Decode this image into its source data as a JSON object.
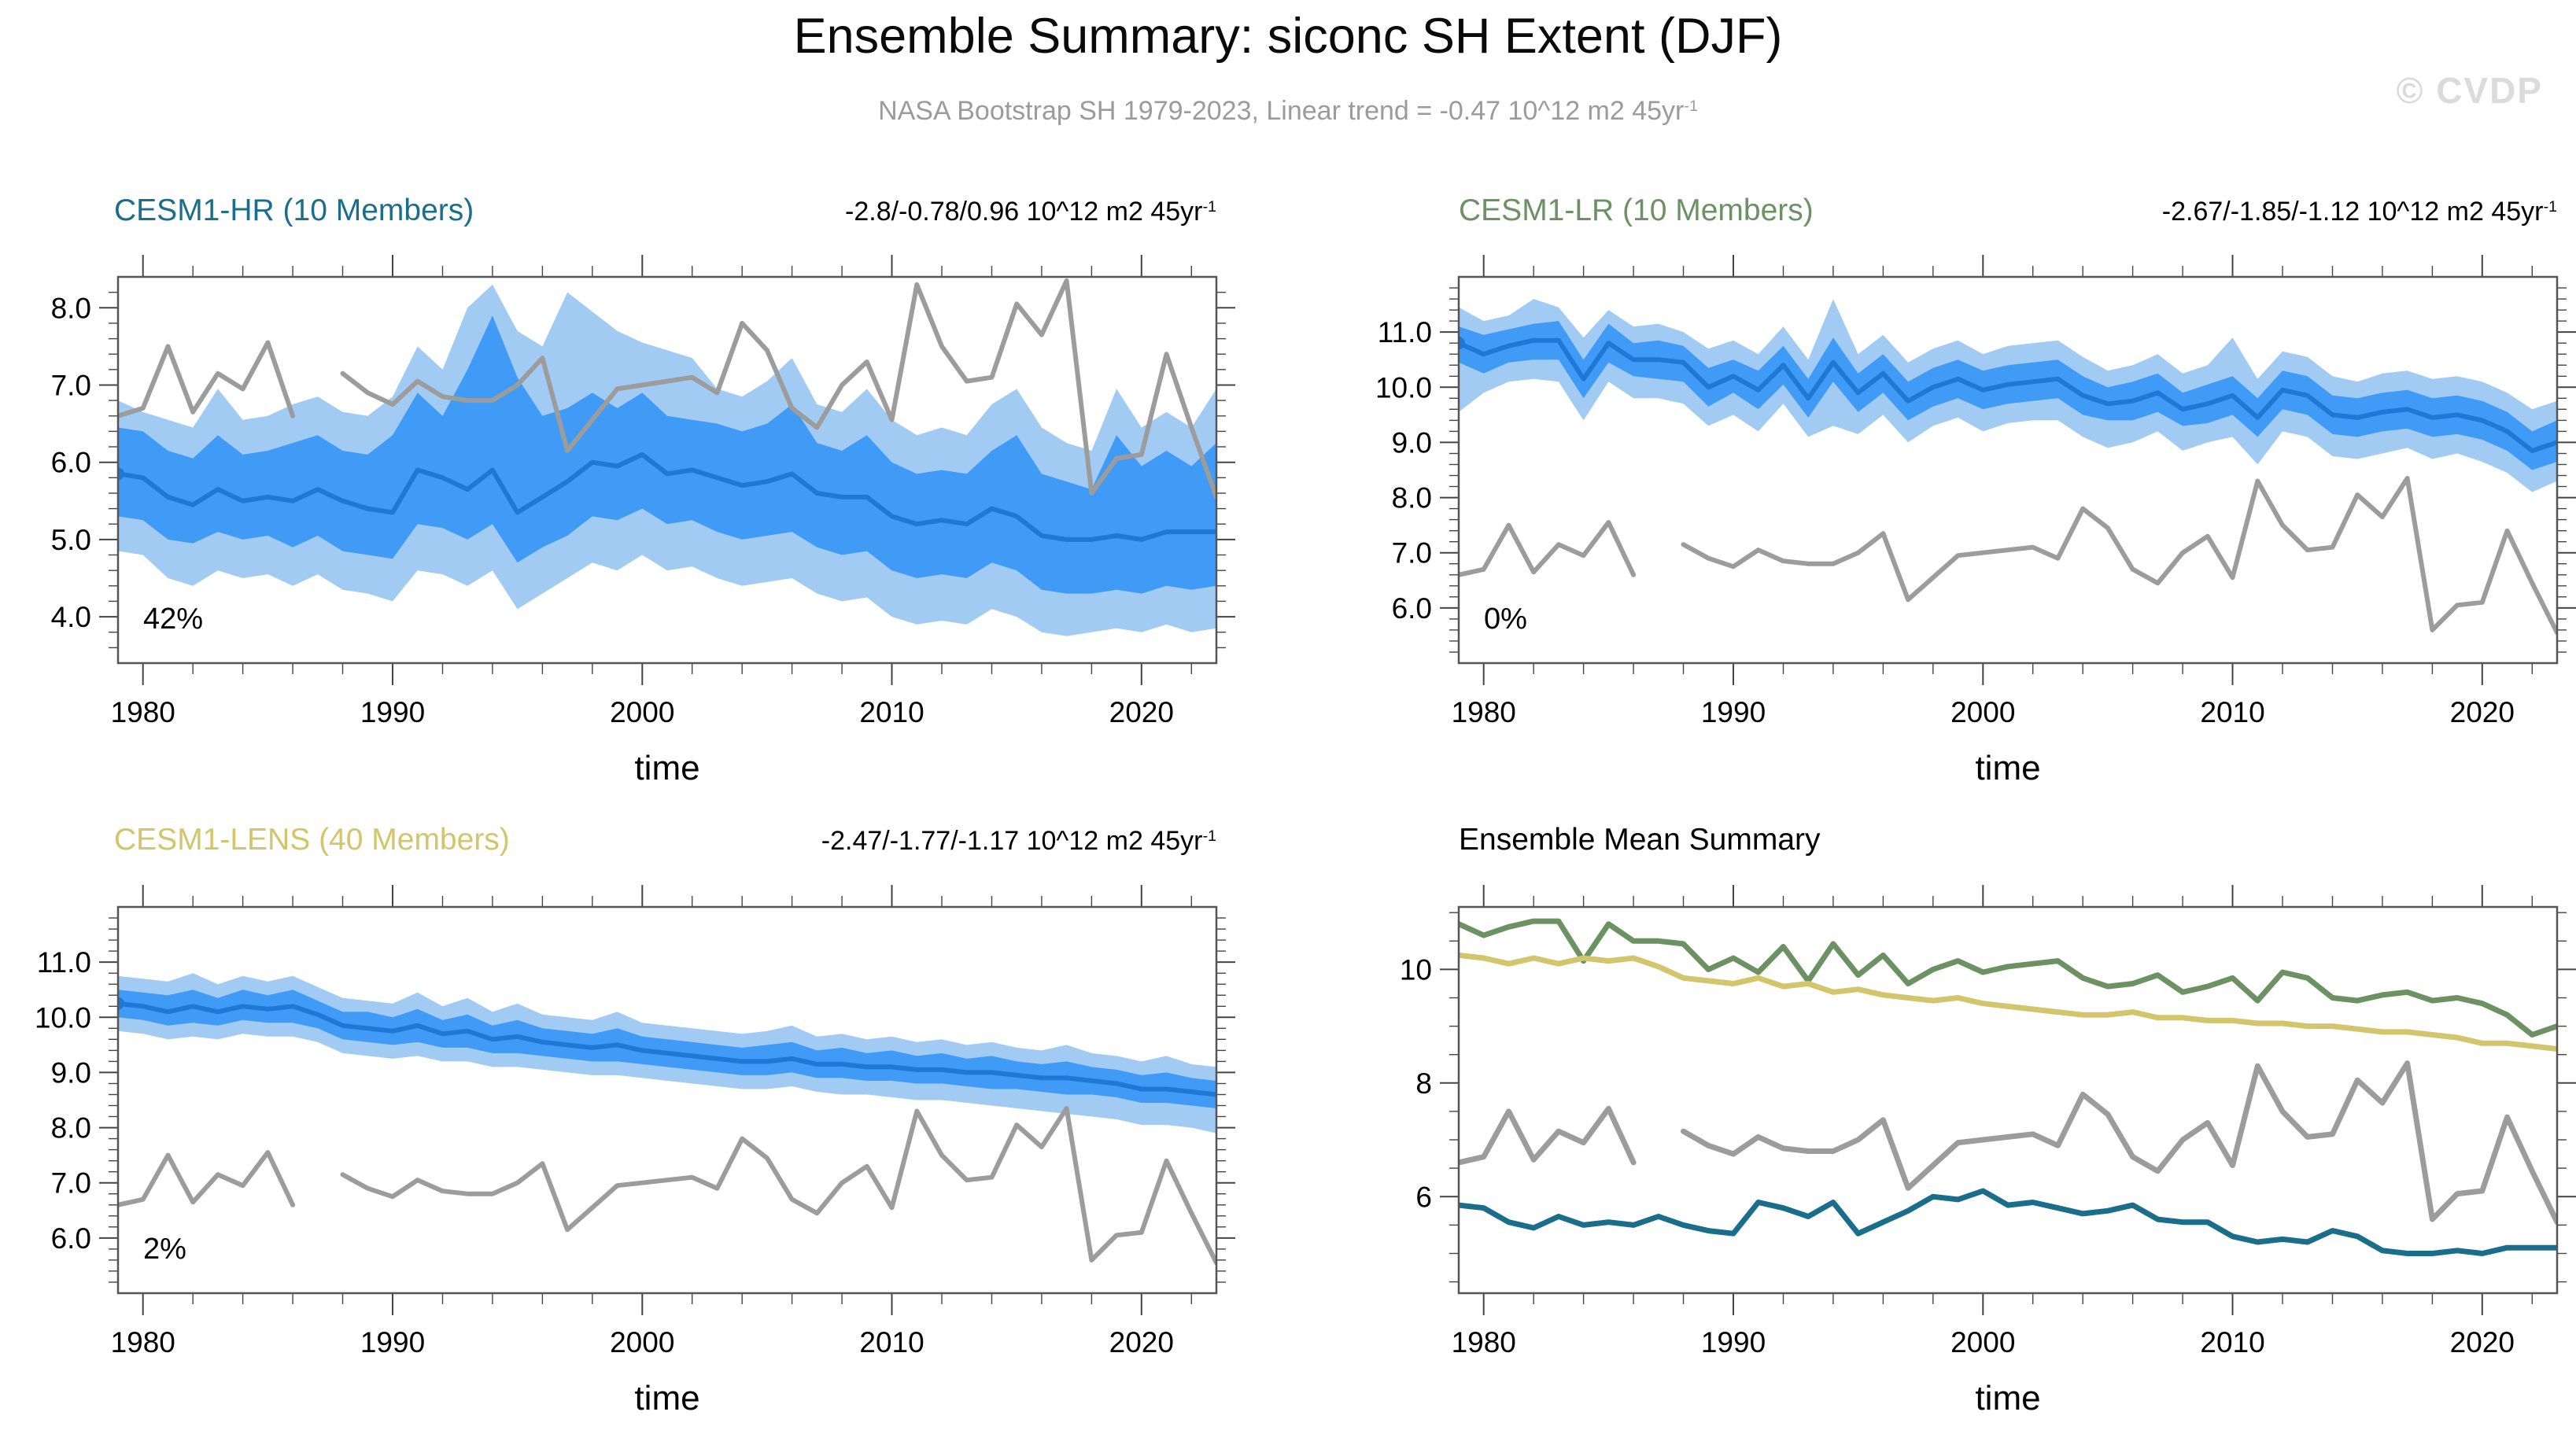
{
  "header": {
    "title": "Ensemble Summary: siconc SH Extent (DJF)",
    "subtitle_base": "NASA Bootstrap SH 1979-2023, Linear trend = -0.47 10^12 m2 45yr",
    "subtitle_sup": "-1",
    "watermark": "© CVDP"
  },
  "colors": {
    "band_outer": "#A2CBF4",
    "band_inner": "#3F9BF5",
    "band_mean": "#1F78D5",
    "observations": "#9C9C9C",
    "frame": "#555555",
    "tick": "#444444",
    "subtitle_gray": "#9B9B9B",
    "watermark_gray": "#DBDBDB"
  },
  "chart_data": {
    "type": "line",
    "xlabel": "time",
    "xlim": [
      1979,
      2023
    ],
    "x_major_ticks": [
      1980,
      1990,
      2000,
      2010,
      2020
    ],
    "x_minor_step": 2,
    "years": [
      1979,
      1980,
      1981,
      1982,
      1983,
      1984,
      1985,
      1986,
      1987,
      1988,
      1989,
      1990,
      1991,
      1992,
      1993,
      1994,
      1995,
      1996,
      1997,
      1998,
      1999,
      2000,
      2001,
      2002,
      2003,
      2004,
      2005,
      2006,
      2007,
      2008,
      2009,
      2010,
      2011,
      2012,
      2013,
      2014,
      2015,
      2016,
      2017,
      2018,
      2019,
      2020,
      2021,
      2022,
      2023
    ],
    "observations": {
      "label": "NASA Bootstrap SH",
      "color": "#9C9C9C",
      "values": [
        6.6,
        6.7,
        7.5,
        6.65,
        7.15,
        6.95,
        7.55,
        6.6,
        null,
        7.15,
        6.9,
        6.75,
        7.05,
        6.85,
        6.8,
        6.8,
        7.0,
        7.35,
        6.15,
        6.55,
        6.95,
        7.0,
        7.05,
        7.1,
        6.9,
        7.8,
        7.45,
        6.7,
        6.45,
        7.0,
        7.3,
        6.55,
        8.3,
        7.5,
        7.05,
        7.1,
        8.05,
        7.65,
        8.35,
        5.6,
        6.05,
        6.1,
        7.4,
        6.45,
        5.55
      ]
    },
    "ensembles": {
      "cesm1_hr": {
        "label": "CESM1-HR",
        "members": 10,
        "color": "#1A6E8C",
        "mean": [
          5.85,
          5.8,
          5.55,
          5.45,
          5.65,
          5.5,
          5.55,
          5.5,
          5.65,
          5.5,
          5.4,
          5.35,
          5.9,
          5.8,
          5.65,
          5.9,
          5.35,
          5.55,
          5.75,
          6.0,
          5.95,
          6.1,
          5.85,
          5.9,
          5.8,
          5.7,
          5.75,
          5.85,
          5.6,
          5.55,
          5.55,
          5.3,
          5.2,
          5.25,
          5.2,
          5.4,
          5.3,
          5.05,
          5.0,
          5.0,
          5.05,
          5.0,
          5.1,
          5.1,
          5.1
        ],
        "inner_top": [
          6.45,
          6.4,
          6.15,
          6.05,
          6.35,
          6.1,
          6.15,
          6.25,
          6.35,
          6.15,
          6.1,
          6.35,
          6.9,
          6.6,
          7.2,
          7.9,
          7.1,
          6.6,
          6.7,
          6.9,
          6.7,
          6.9,
          6.6,
          6.55,
          6.5,
          6.4,
          6.5,
          6.75,
          6.25,
          6.15,
          6.35,
          6.0,
          5.85,
          5.9,
          5.85,
          6.15,
          6.35,
          5.85,
          5.75,
          5.65,
          6.35,
          5.95,
          6.15,
          5.95,
          6.25
        ],
        "inner_bottom": [
          5.3,
          5.25,
          5.0,
          4.95,
          5.1,
          5.0,
          5.05,
          4.9,
          5.05,
          4.85,
          4.8,
          4.75,
          5.2,
          5.15,
          5.0,
          5.2,
          4.7,
          4.9,
          5.05,
          5.3,
          5.25,
          5.4,
          5.2,
          5.25,
          5.1,
          5.0,
          5.05,
          5.1,
          4.9,
          4.8,
          4.85,
          4.6,
          4.5,
          4.55,
          4.5,
          4.7,
          4.6,
          4.35,
          4.3,
          4.3,
          4.35,
          4.3,
          4.4,
          4.35,
          4.4
        ],
        "outer_top": [
          6.8,
          6.65,
          6.55,
          6.45,
          6.95,
          6.55,
          6.6,
          6.75,
          6.85,
          6.65,
          6.6,
          6.85,
          7.5,
          7.2,
          8.0,
          8.3,
          7.7,
          7.5,
          8.2,
          7.95,
          7.7,
          7.55,
          7.45,
          7.35,
          6.95,
          6.85,
          7.05,
          7.35,
          6.75,
          6.65,
          6.95,
          6.55,
          6.35,
          6.45,
          6.35,
          6.75,
          6.95,
          6.45,
          6.25,
          6.15,
          6.95,
          6.45,
          6.65,
          6.45,
          6.95
        ],
        "outer_bottom": [
          4.85,
          4.8,
          4.5,
          4.4,
          4.6,
          4.5,
          4.55,
          4.4,
          4.55,
          4.35,
          4.3,
          4.2,
          4.6,
          4.55,
          4.4,
          4.6,
          4.1,
          4.3,
          4.5,
          4.7,
          4.6,
          4.8,
          4.6,
          4.65,
          4.5,
          4.4,
          4.45,
          4.5,
          4.3,
          4.2,
          4.25,
          4.0,
          3.9,
          3.95,
          3.9,
          4.1,
          4.0,
          3.8,
          3.75,
          3.8,
          3.85,
          3.8,
          3.9,
          3.8,
          3.85
        ]
      },
      "cesm1_lr": {
        "label": "CESM1-LR",
        "members": 10,
        "color": "#6C9263",
        "mean": [
          10.8,
          10.6,
          10.75,
          10.85,
          10.85,
          10.15,
          10.8,
          10.5,
          10.5,
          10.45,
          10.0,
          10.2,
          9.95,
          10.4,
          9.8,
          10.45,
          9.9,
          10.25,
          9.75,
          10.0,
          10.15,
          9.95,
          10.05,
          10.1,
          10.15,
          9.85,
          9.7,
          9.75,
          9.9,
          9.6,
          9.7,
          9.85,
          9.45,
          9.95,
          9.85,
          9.5,
          9.45,
          9.55,
          9.6,
          9.45,
          9.5,
          9.4,
          9.2,
          8.85,
          9.0
        ],
        "inner_top": [
          11.1,
          10.95,
          11.05,
          11.15,
          11.2,
          10.5,
          11.15,
          10.8,
          10.85,
          10.75,
          10.35,
          10.5,
          10.3,
          10.75,
          10.15,
          10.9,
          10.25,
          10.6,
          10.1,
          10.35,
          10.5,
          10.3,
          10.4,
          10.45,
          10.5,
          10.2,
          10.0,
          10.1,
          10.25,
          9.9,
          10.05,
          10.2,
          9.8,
          10.3,
          10.2,
          9.85,
          9.8,
          9.9,
          9.95,
          9.8,
          9.85,
          9.75,
          9.55,
          9.2,
          9.4
        ],
        "inner_bottom": [
          10.45,
          10.25,
          10.45,
          10.5,
          10.5,
          9.8,
          10.45,
          10.2,
          10.15,
          10.1,
          9.65,
          9.9,
          9.6,
          10.05,
          9.45,
          10.1,
          9.55,
          9.9,
          9.4,
          9.65,
          9.8,
          9.6,
          9.7,
          9.75,
          9.8,
          9.5,
          9.4,
          9.4,
          9.55,
          9.3,
          9.35,
          9.5,
          9.1,
          9.6,
          9.5,
          9.15,
          9.1,
          9.2,
          9.25,
          9.1,
          9.15,
          9.05,
          8.85,
          8.5,
          8.65
        ],
        "outer_top": [
          11.45,
          11.2,
          11.3,
          11.6,
          11.45,
          10.9,
          11.4,
          11.1,
          11.15,
          11.0,
          10.7,
          10.85,
          10.6,
          11.1,
          10.5,
          11.6,
          10.6,
          10.95,
          10.45,
          10.7,
          10.85,
          10.6,
          10.75,
          10.8,
          10.85,
          10.55,
          10.3,
          10.4,
          10.6,
          10.25,
          10.4,
          10.9,
          10.15,
          10.65,
          10.55,
          10.2,
          10.1,
          10.25,
          10.3,
          10.15,
          10.2,
          10.1,
          9.9,
          9.6,
          9.75
        ],
        "outer_bottom": [
          9.55,
          9.9,
          10.1,
          10.15,
          10.1,
          9.4,
          10.1,
          9.8,
          9.8,
          9.7,
          9.3,
          9.5,
          9.2,
          9.7,
          9.1,
          9.3,
          9.15,
          9.5,
          9.0,
          9.3,
          9.45,
          9.2,
          9.35,
          9.4,
          9.4,
          9.1,
          8.9,
          9.0,
          9.2,
          8.85,
          9.0,
          9.1,
          8.6,
          9.2,
          9.1,
          8.75,
          8.7,
          8.8,
          8.9,
          8.7,
          8.8,
          8.65,
          8.45,
          8.1,
          8.3
        ]
      },
      "cesm1_lens": {
        "label": "CESM1-LENS",
        "members": 40,
        "color": "#D2C56C",
        "mean": [
          10.25,
          10.2,
          10.1,
          10.2,
          10.1,
          10.2,
          10.15,
          10.2,
          10.05,
          9.85,
          9.8,
          9.75,
          9.85,
          9.7,
          9.75,
          9.6,
          9.65,
          9.55,
          9.5,
          9.45,
          9.5,
          9.4,
          9.35,
          9.3,
          9.25,
          9.2,
          9.2,
          9.25,
          9.15,
          9.15,
          9.1,
          9.1,
          9.05,
          9.05,
          9.0,
          9.0,
          8.95,
          8.9,
          8.9,
          8.85,
          8.8,
          8.7,
          8.7,
          8.65,
          8.6
        ],
        "inner_top": [
          10.5,
          10.45,
          10.4,
          10.5,
          10.35,
          10.5,
          10.4,
          10.5,
          10.3,
          10.1,
          10.1,
          10.0,
          10.15,
          9.95,
          10.05,
          9.85,
          9.95,
          9.8,
          9.75,
          9.7,
          9.8,
          9.65,
          9.6,
          9.55,
          9.5,
          9.45,
          9.5,
          9.55,
          9.4,
          9.45,
          9.35,
          9.4,
          9.3,
          9.35,
          9.25,
          9.3,
          9.2,
          9.15,
          9.2,
          9.1,
          9.05,
          8.95,
          9.0,
          8.9,
          8.85
        ],
        "inner_bottom": [
          10.0,
          9.95,
          9.85,
          9.9,
          9.85,
          9.95,
          9.9,
          9.9,
          9.8,
          9.6,
          9.55,
          9.5,
          9.55,
          9.45,
          9.45,
          9.35,
          9.35,
          9.3,
          9.25,
          9.2,
          9.2,
          9.15,
          9.1,
          9.05,
          9.0,
          8.95,
          8.95,
          9.0,
          8.9,
          8.9,
          8.85,
          8.85,
          8.8,
          8.8,
          8.75,
          8.7,
          8.7,
          8.65,
          8.6,
          8.6,
          8.55,
          8.45,
          8.45,
          8.4,
          8.35
        ],
        "outer_top": [
          10.75,
          10.7,
          10.65,
          10.8,
          10.6,
          10.75,
          10.65,
          10.75,
          10.55,
          10.35,
          10.3,
          10.25,
          10.45,
          10.2,
          10.35,
          10.1,
          10.25,
          10.05,
          10.0,
          9.95,
          10.1,
          9.9,
          9.85,
          9.8,
          9.75,
          9.7,
          9.75,
          9.85,
          9.65,
          9.7,
          9.6,
          9.65,
          9.55,
          9.6,
          9.5,
          9.55,
          9.45,
          9.4,
          9.5,
          9.35,
          9.3,
          9.2,
          9.3,
          9.15,
          9.1
        ],
        "outer_bottom": [
          9.75,
          9.7,
          9.6,
          9.65,
          9.6,
          9.7,
          9.65,
          9.65,
          9.55,
          9.35,
          9.3,
          9.25,
          9.3,
          9.2,
          9.2,
          9.1,
          9.1,
          9.05,
          9.0,
          8.95,
          8.95,
          8.9,
          8.85,
          8.8,
          8.75,
          8.7,
          8.7,
          8.75,
          8.65,
          8.6,
          8.6,
          8.55,
          8.5,
          8.5,
          8.45,
          8.4,
          8.35,
          8.3,
          8.25,
          8.2,
          8.15,
          8.05,
          8.05,
          8.0,
          7.9
        ]
      }
    },
    "panels": [
      {
        "id": "cesm1-hr",
        "kind": "ensemble",
        "ensemble": "cesm1_hr",
        "title": "CESM1-HR (10 Members)",
        "title_color": "#1A6E8C",
        "trend_base": "-2.8/-0.78/0.96 10^12 m2 45yr",
        "trend_sup": "-1",
        "agreement": "42%",
        "xlabel": "time",
        "ylim": [
          3.4,
          8.4
        ],
        "ytick_vals": [
          4,
          5,
          6,
          7,
          8
        ],
        "ytick_labels": [
          "4.0",
          "5.0",
          "6.0",
          "7.0",
          "8.0"
        ],
        "y_minor_step": 0.2
      },
      {
        "id": "cesm1-lr",
        "kind": "ensemble",
        "ensemble": "cesm1_lr",
        "title": "CESM1-LR (10 Members)",
        "title_color": "#6C9263",
        "trend_base": "-2.67/-1.85/-1.12 10^12 m2 45yr",
        "trend_sup": "-1",
        "agreement": "0%",
        "xlabel": "time",
        "ylim": [
          5.0,
          12.0
        ],
        "ytick_vals": [
          6,
          7,
          8,
          9,
          10,
          11
        ],
        "ytick_labels": [
          "6.0",
          "7.0",
          "8.0",
          "9.0",
          "10.0",
          "11.0"
        ],
        "y_minor_step": 0.2
      },
      {
        "id": "cesm1-lens",
        "kind": "ensemble",
        "ensemble": "cesm1_lens",
        "title": "CESM1-LENS (40 Members)",
        "title_color": "#D2C56C",
        "trend_base": "-2.47/-1.77/-1.17 10^12 m2 45yr",
        "trend_sup": "-1",
        "agreement": "2%",
        "xlabel": "time",
        "ylim": [
          5.0,
          12.0
        ],
        "ytick_vals": [
          6,
          7,
          8,
          9,
          10,
          11
        ],
        "ytick_labels": [
          "6.0",
          "7.0",
          "8.0",
          "9.0",
          "10.0",
          "11.0"
        ],
        "y_minor_step": 0.2
      },
      {
        "id": "summary",
        "kind": "lines",
        "title": "Ensemble Mean Summary",
        "title_color": "#000000",
        "trend_base": "",
        "trend_sup": "",
        "agreement": "",
        "xlabel": "time",
        "lines": [
          "cesm1_lr",
          "cesm1_lens",
          "obs",
          "cesm1_hr"
        ],
        "ylim": [
          4.3,
          11.1
        ],
        "ytick_vals": [
          6,
          8,
          10
        ],
        "ytick_labels": [
          "6",
          "8",
          "10"
        ],
        "y_minor_step": 0.5
      }
    ]
  }
}
